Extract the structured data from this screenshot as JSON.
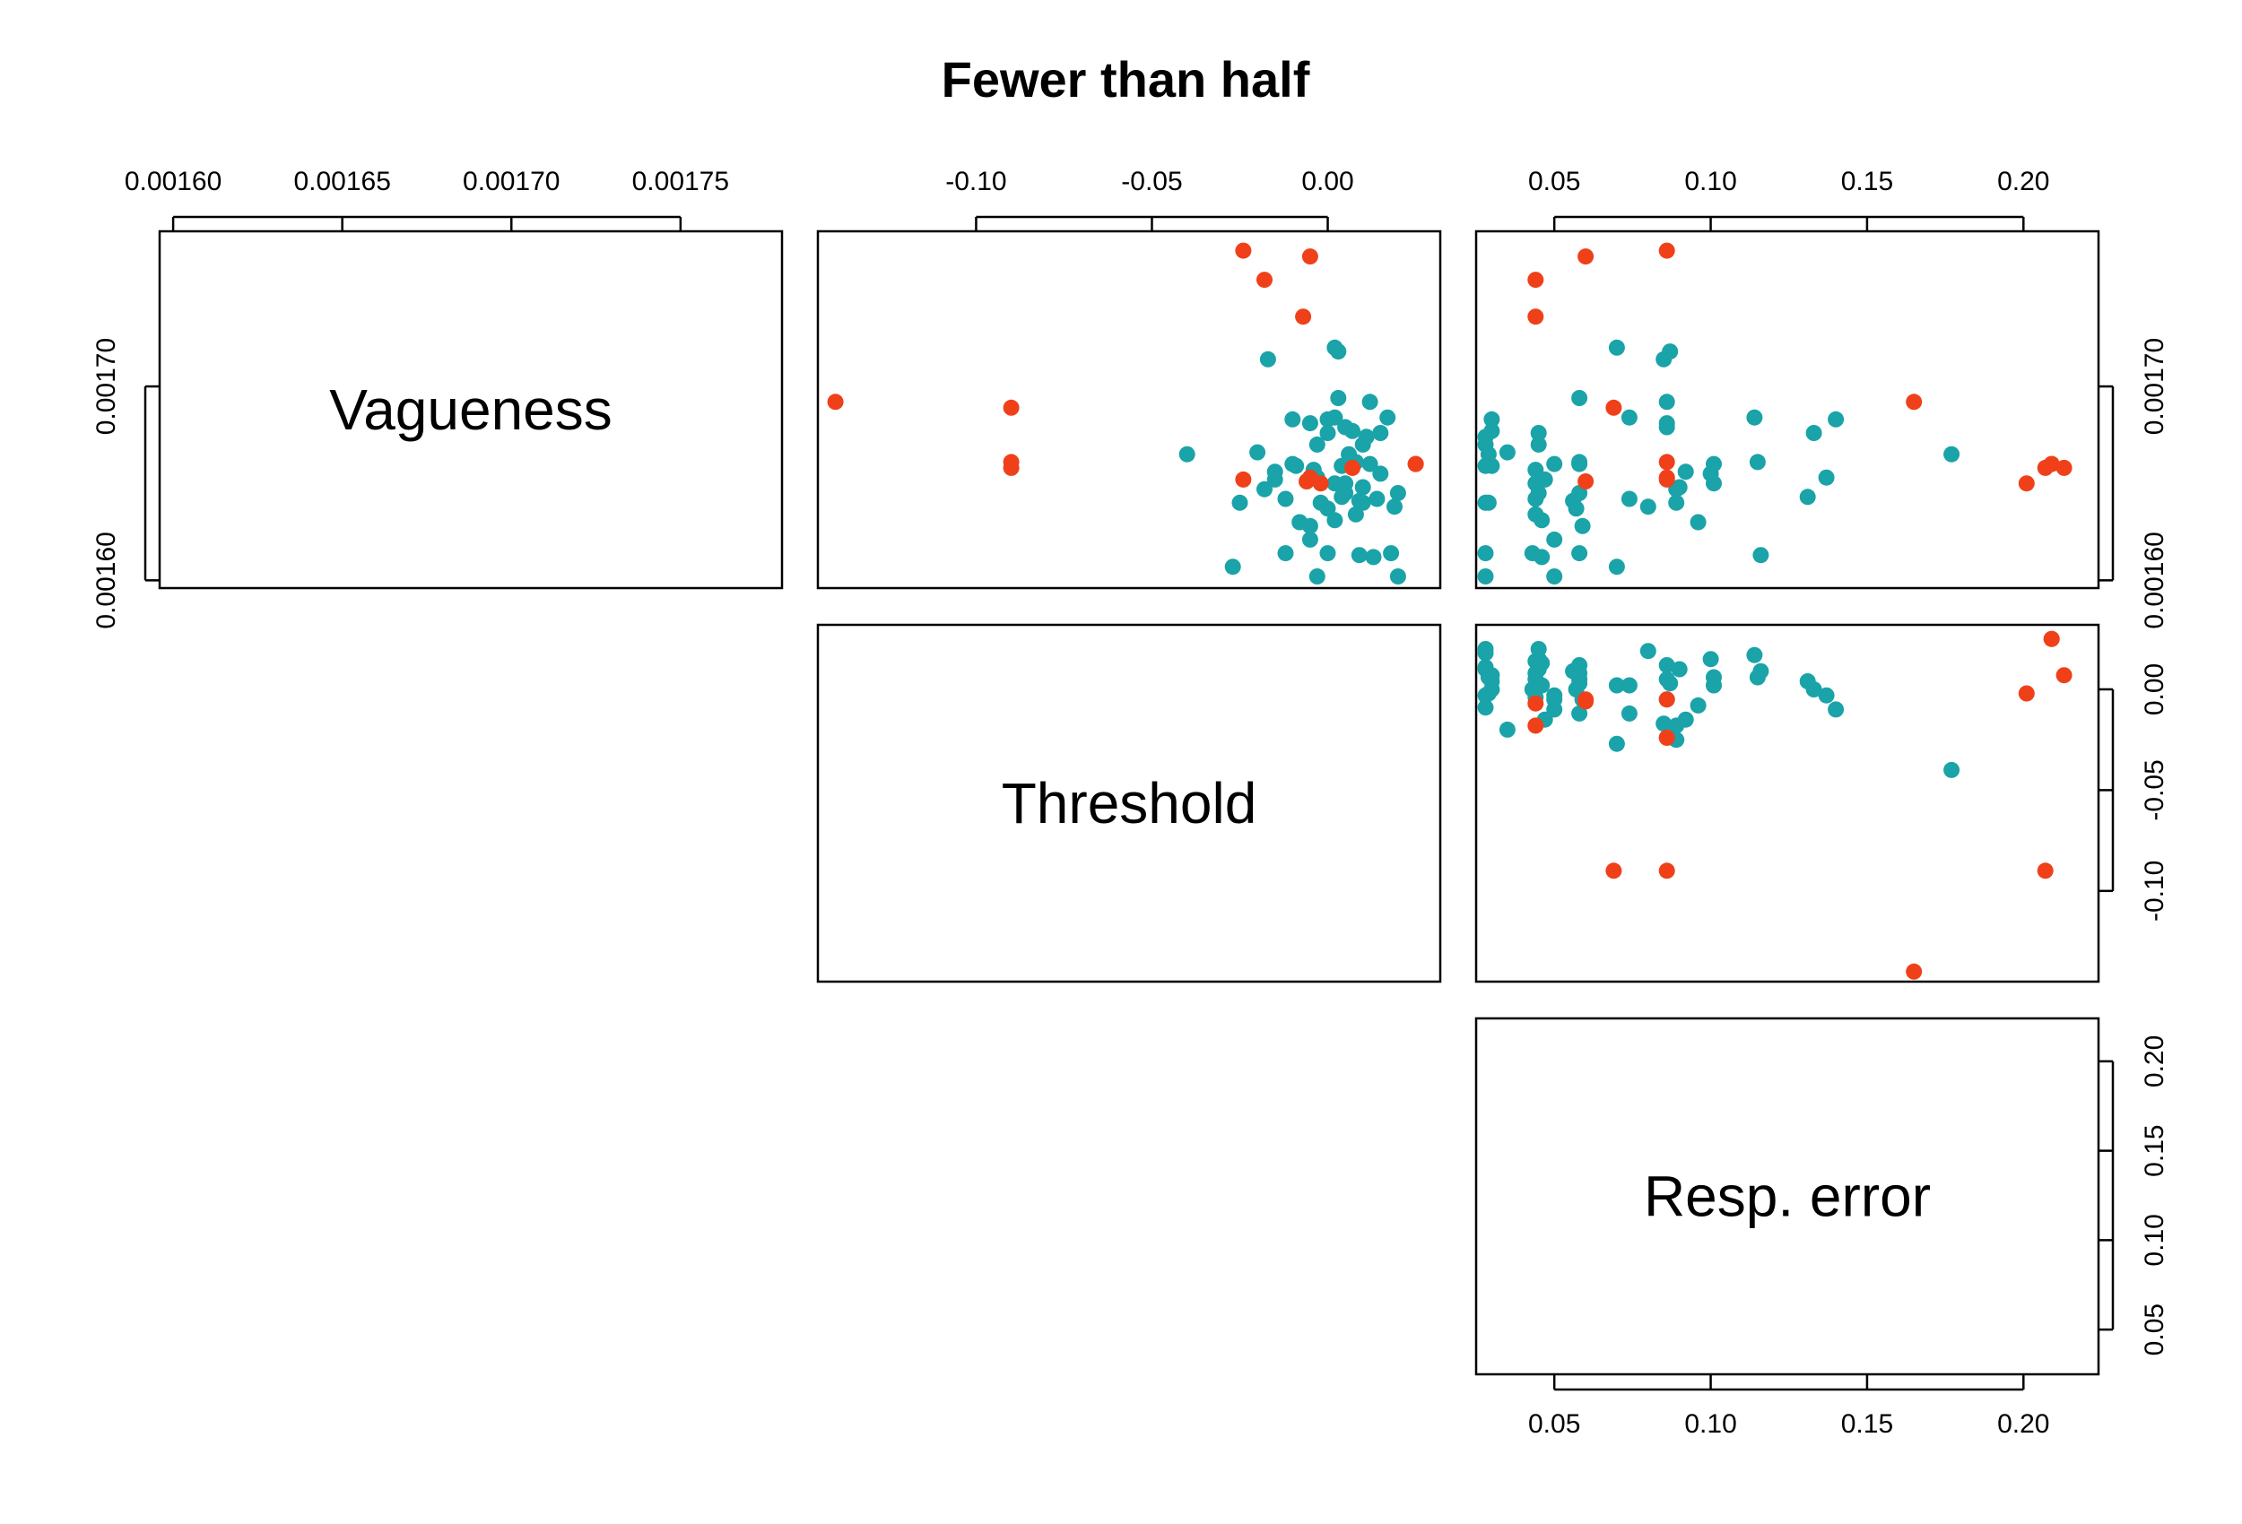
{
  "chart_data": {
    "type": "scatter",
    "title": "Fewer than half",
    "layout": "pairs-upper-triangle",
    "variables": [
      {
        "label": "Vagueness",
        "range": [
          0.001596,
          0.00178
        ],
        "ticks": [
          "0.00160",
          "0.00165",
          "0.00170",
          "0.00175"
        ],
        "tick_values": [
          0.0016,
          0.00165,
          0.0017,
          0.00175
        ],
        "y_ticks": [
          "0.00160",
          "0.00170"
        ],
        "y_tick_values": [
          0.0016,
          0.0017
        ]
      },
      {
        "label": "Threshold",
        "range": [
          -0.145,
          0.032
        ],
        "ticks": [
          "-0.10",
          "-0.05",
          "0.00"
        ],
        "tick_values": [
          -0.1,
          -0.05,
          0.0
        ],
        "y_ticks": [
          "-0.10",
          "-0.05",
          "0.00"
        ],
        "y_tick_values": [
          -0.1,
          -0.05,
          0.0
        ]
      },
      {
        "label": "Resp. error",
        "range": [
          0.025,
          0.224
        ],
        "ticks": [
          "0.05",
          "0.10",
          "0.15",
          "0.20"
        ],
        "tick_values": [
          0.05,
          0.1,
          0.15,
          0.2
        ],
        "y_ticks": [
          "0.05",
          "0.10",
          "0.15",
          "0.20"
        ],
        "y_tick_values": [
          0.05,
          0.1,
          0.15,
          0.2
        ]
      }
    ],
    "colors": {
      "group_a": "#1aa3a8",
      "group_b": "#f0401a"
    },
    "series": [
      {
        "group": "group_a",
        "points": [
          [
            0.001659,
            0.004,
            0.03
          ],
          [
            0.001683,
            0.0,
            0.03
          ],
          [
            0.001677,
            0.007,
            0.03
          ],
          [
            0.00167,
            -0.003,
            0.028
          ],
          [
            0.001659,
            -0.009,
            0.028
          ],
          [
            0.00164,
            0.01,
            0.028
          ],
          [
            0.001614,
            0.018,
            0.028
          ],
          [
            0.001602,
            0.02,
            0.028
          ],
          [
            0.001665,
            0.006,
            0.029
          ],
          [
            0.00164,
            -0.002,
            0.029
          ],
          [
            0.001676,
            0.015,
            0.045
          ],
          [
            0.001657,
            -0.004,
            0.044
          ],
          [
            0.00165,
            0.005,
            0.044
          ],
          [
            0.001642,
            0.014,
            0.044
          ],
          [
            0.001634,
            0.008,
            0.044
          ],
          [
            0.001631,
            0.002,
            0.046
          ],
          [
            0.001614,
            0.0,
            0.043
          ],
          [
            0.001612,
            0.013,
            0.046
          ],
          [
            0.001645,
            0.02,
            0.045
          ],
          [
            0.00167,
            0.01,
            0.045
          ],
          [
            0.00166,
            -0.01,
            0.05
          ],
          [
            0.001621,
            -0.005,
            0.05
          ],
          [
            0.00166,
            0.012,
            0.058
          ],
          [
            0.001661,
            0.008,
            0.058
          ],
          [
            0.001645,
            0.005,
            0.058
          ],
          [
            0.001637,
            0.0,
            0.057
          ],
          [
            0.001628,
            -0.005,
            0.059
          ],
          [
            0.001614,
            -0.012,
            0.058
          ],
          [
            0.001694,
            0.003,
            0.058
          ],
          [
            0.001607,
            -0.027,
            0.07
          ],
          [
            0.00172,
            0.002,
            0.07
          ],
          [
            0.001684,
            0.002,
            0.074
          ],
          [
            0.001642,
            -0.012,
            0.074
          ],
          [
            0.001714,
            -0.017,
            0.085
          ],
          [
            0.001718,
            0.003,
            0.087
          ],
          [
            0.001692,
            0.012,
            0.086
          ],
          [
            0.001679,
            0.005,
            0.086
          ],
          [
            0.001681,
            -0.005,
            0.086
          ],
          [
            0.001647,
            -0.018,
            0.089
          ],
          [
            0.00164,
            -0.025,
            0.089
          ],
          [
            0.001656,
            -0.015,
            0.092
          ],
          [
            0.001655,
            0.015,
            0.1
          ],
          [
            0.00165,
            0.002,
            0.101
          ],
          [
            0.00166,
            0.006,
            0.101
          ],
          [
            0.001684,
            0.017,
            0.114
          ],
          [
            0.001613,
            0.009,
            0.116
          ],
          [
            0.001643,
            0.004,
            0.131
          ],
          [
            0.001676,
            0.0,
            0.133
          ],
          [
            0.001653,
            -0.003,
            0.137
          ],
          [
            0.001683,
            -0.01,
            0.14
          ],
          [
            0.001665,
            -0.04,
            0.177
          ],
          [
            0.001661,
            0.006,
            0.115
          ],
          [
            0.001648,
            0.01,
            0.09
          ],
          [
            0.00163,
            -0.008,
            0.096
          ],
          [
            0.001602,
            -0.003,
            0.05
          ],
          [
            0.001674,
            0.011,
            0.028
          ],
          [
            0.001666,
            -0.02,
            0.035
          ],
          [
            0.001652,
            -0.015,
            0.047
          ],
          [
            0.001641,
            0.009,
            0.056
          ],
          [
            0.001638,
            0.019,
            0.08
          ]
        ]
      },
      {
        "group": "group_b",
        "points": [
          [
            0.00177,
            -0.024,
            0.086
          ],
          [
            0.001767,
            -0.005,
            0.06
          ],
          [
            0.001755,
            -0.018,
            0.044
          ],
          [
            0.001736,
            -0.007,
            0.044
          ],
          [
            0.001692,
            -0.14,
            0.165
          ],
          [
            0.001689,
            -0.09,
            0.069
          ],
          [
            0.001661,
            -0.09,
            0.086
          ],
          [
            0.001658,
            -0.09,
            0.207
          ],
          [
            0.00166,
            0.025,
            0.209
          ],
          [
            0.001658,
            0.007,
            0.213
          ],
          [
            0.00165,
            -0.002,
            0.201
          ],
          [
            0.001653,
            -0.005,
            0.086
          ],
          [
            0.00166,
            0.025,
            0.209
          ],
          [
            0.001651,
            -0.006,
            0.06
          ],
          [
            0.001652,
            -0.024,
            0.086
          ]
        ]
      }
    ]
  }
}
